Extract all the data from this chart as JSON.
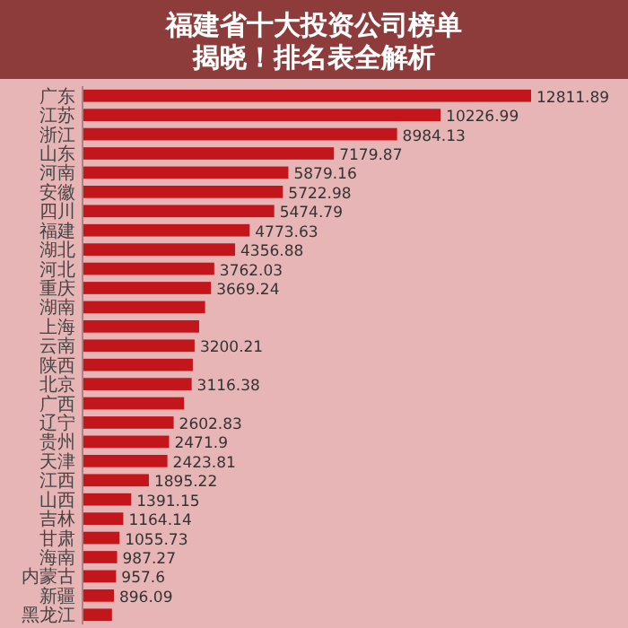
{
  "chart_data": {
    "type": "bar",
    "orientation": "horizontal",
    "title": "福建省十大投资公司榜单揭晓！排名表全解析",
    "color": "#c3161c",
    "categories": [
      "广东",
      "江苏",
      "浙江",
      "山东",
      "河南",
      "安徽",
      "四川",
      "福建",
      "湖北",
      "河北",
      "重庆",
      "湖南",
      "上海",
      "云南",
      "陕西",
      "北京",
      "广西",
      "辽宁",
      "贵州",
      "天津",
      "江西",
      "山西",
      "吉林",
      "甘肃",
      "海南",
      "内蒙古",
      "新疆",
      "黑龙江"
    ],
    "values": [
      12811.89,
      10226.99,
      8984.13,
      7179.87,
      5879.16,
      5722.98,
      5474.79,
      4773.63,
      4356.88,
      3762.03,
      3669.24,
      3500,
      3330,
      3200.21,
      3150,
      3116.38,
      2900,
      2602.83,
      2471.9,
      2423.81,
      1895.22,
      1391.15,
      1164.14,
      1055.73,
      987.27,
      957.6,
      896.09,
      840
    ],
    "value_labels": [
      "12811.89",
      "10226.99",
      "8984.13",
      "7179.87",
      "5879.16",
      "5722.98",
      "5474.79",
      "4773.63",
      "4356.88",
      "3762.03",
      "3669.24",
      null,
      null,
      "3200.21",
      null,
      "3116.38",
      null,
      "2602.83",
      "2471.9",
      "2423.81",
      "1895.22",
      "1391.15",
      "1164.14",
      "1055.73",
      "987.27",
      "957.6",
      "896.09",
      null
    ]
  }
}
